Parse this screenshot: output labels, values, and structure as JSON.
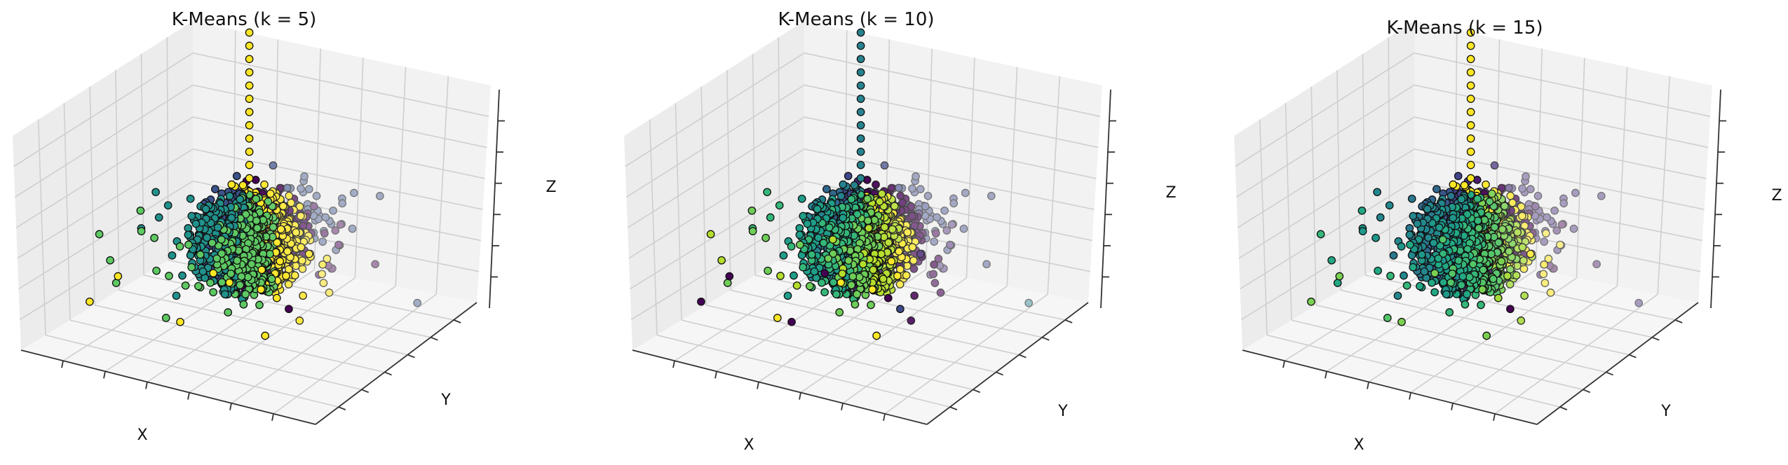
{
  "figure": {
    "panel_count": 3
  },
  "chart_data": [
    {
      "type": "scatter",
      "projection": "3d",
      "title": "K-Means (k = 5)",
      "xlabel": "X",
      "ylabel": "Y",
      "zlabel": "Z",
      "k": 5,
      "colormap": "viridis",
      "cluster_colors": [
        "#440154",
        "#3b528b",
        "#21918c",
        "#5ec962",
        "#fde725"
      ],
      "grid": true,
      "tick_labels_visible": false
    },
    {
      "type": "scatter",
      "projection": "3d",
      "title": "K-Means (k = 10)",
      "xlabel": "X",
      "ylabel": "Y",
      "zlabel": "Z",
      "k": 10,
      "colormap": "viridis",
      "cluster_colors": [
        "#440154",
        "#482878",
        "#3e4989",
        "#31688e",
        "#26828e",
        "#1f9e89",
        "#35b779",
        "#6ece58",
        "#b5de2b",
        "#fde725"
      ],
      "grid": true,
      "tick_labels_visible": false
    },
    {
      "type": "scatter",
      "projection": "3d",
      "title": "K-Means (k = 15)",
      "xlabel": "X",
      "ylabel": "Y",
      "zlabel": "Z",
      "k": 15,
      "colormap": "viridis",
      "cluster_colors": [
        "#440154",
        "#481a6c",
        "#472f7d",
        "#414487",
        "#39568c",
        "#31688e",
        "#2a788e",
        "#23888e",
        "#1f988b",
        "#22a884",
        "#35b779",
        "#54c568",
        "#7ad151",
        "#a5db36",
        "#fde725"
      ],
      "grid": true,
      "tick_labels_visible": false
    }
  ]
}
